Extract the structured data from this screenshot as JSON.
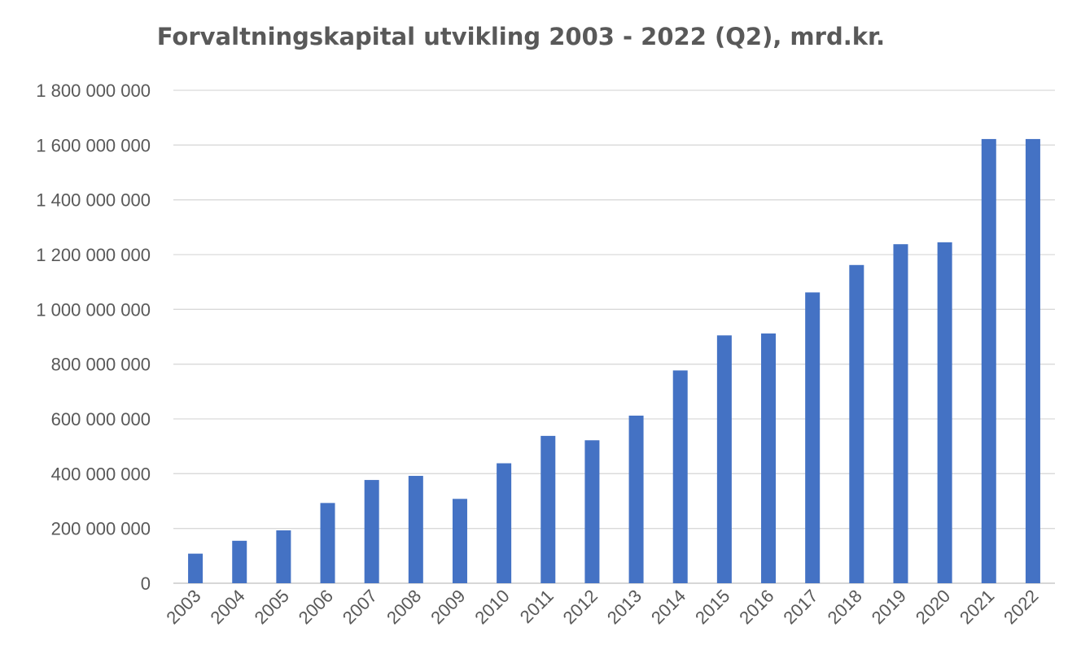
{
  "chart_data": {
    "type": "bar",
    "title": "Forvaltningskapital utvikling 2003 - 2022 (Q2), mrd.kr.",
    "xlabel": "",
    "ylabel": "",
    "categories": [
      "2003",
      "2004",
      "2005",
      "2006",
      "2007",
      "2008",
      "2009",
      "2010",
      "2011",
      "2012",
      "2013",
      "2014",
      "2015",
      "2016",
      "2017",
      "2018",
      "2019",
      "2020",
      "2021",
      "2022"
    ],
    "series": [
      {
        "values": [
          108000000,
          155000000,
          193000000,
          293000000,
          377000000,
          392000000,
          308000000,
          438000000,
          538000000,
          522000000,
          612000000,
          777000000,
          905000000,
          912000000,
          1062000000,
          1162000000,
          1238000000,
          1245000000,
          1622000000,
          1622000000
        ]
      }
    ],
    "ylim": [
      0,
      1800000000
    ],
    "yticks": [
      0,
      200000000,
      400000000,
      600000000,
      800000000,
      1000000000,
      1200000000,
      1400000000,
      1600000000,
      1800000000
    ],
    "ytick_labels": [
      "0",
      "200 000 000",
      "400 000 000",
      "600 000 000",
      "800 000 000",
      "1 000 000 000",
      "1 200 000 000",
      "1 400 000 000",
      "1 600 000 000",
      "1 800 000 000"
    ],
    "grid": true,
    "legend": "none",
    "bar_color": "#4472c4",
    "grid_color": "#d9d9d9",
    "text_color": "#595959"
  }
}
